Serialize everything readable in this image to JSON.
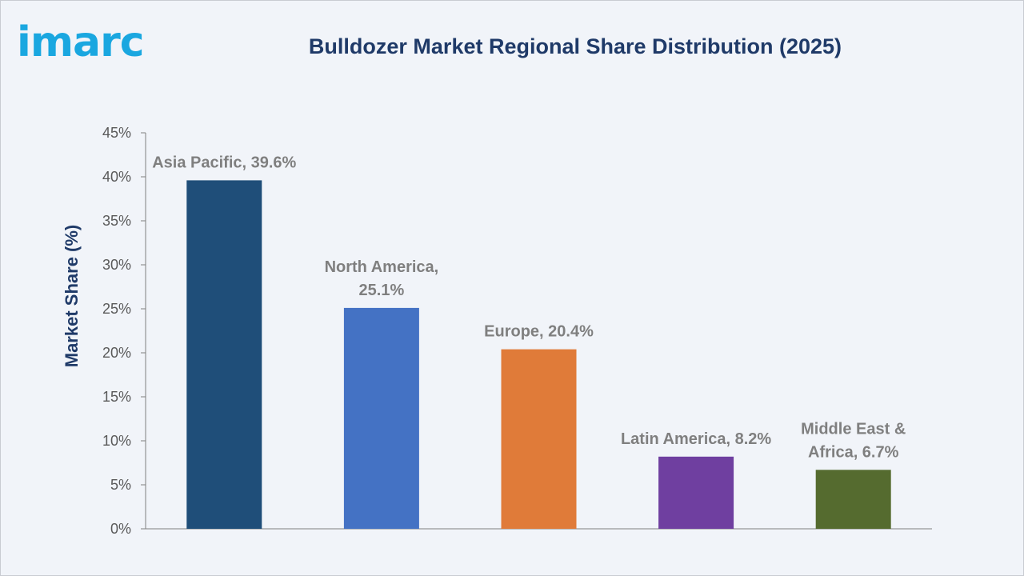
{
  "logo": {
    "text": "imarc",
    "color": "#1aa7e0"
  },
  "chart_data": {
    "type": "bar",
    "title": "Bulldozer Market Regional Share Distribution (2025)",
    "xlabel": "",
    "ylabel": "Market Share (%)",
    "categories": [
      "Asia Pacific",
      "North America",
      "Europe",
      "Latin America",
      "Middle East & Africa"
    ],
    "values": [
      39.6,
      25.1,
      20.4,
      8.2,
      6.7
    ],
    "data_labels": [
      [
        "Asia Pacific, 39.6%"
      ],
      [
        "North America,",
        "25.1%"
      ],
      [
        "Europe, 20.4%"
      ],
      [
        "Latin America, 8.2%"
      ],
      [
        "Middle East &",
        "Africa, 6.7%"
      ]
    ],
    "colors": [
      "#1f4e79",
      "#4472c4",
      "#e07b39",
      "#6f3fa0",
      "#556b2f"
    ],
    "ylim": [
      0,
      45
    ],
    "yticks": [
      "0%",
      "5%",
      "10%",
      "15%",
      "20%",
      "25%",
      "30%",
      "35%",
      "40%",
      "45%"
    ],
    "grid": false,
    "legend": "none"
  }
}
